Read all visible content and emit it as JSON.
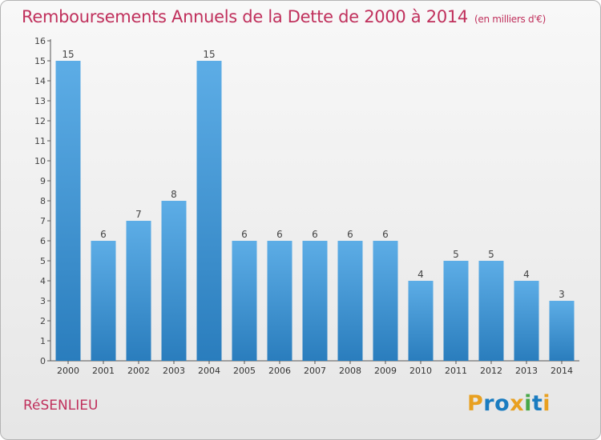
{
  "header": {
    "title": "Remboursements Annuels de la Dette de 2000 à 2014",
    "unit": "(en milliers d'€)"
  },
  "footer": {
    "commune": "RéSENLIEU",
    "brand": "Proxiti"
  },
  "colors": {
    "title": "#c0305c",
    "bar_top": "#5dade6",
    "bar_bottom": "#2a7dbd",
    "logo_letters": [
      "#e8a020",
      "#1a7cc0",
      "#1a7cc0",
      "#e8a020",
      "#48a848",
      "#1a7cc0",
      "#e8a020"
    ]
  },
  "chart_data": {
    "type": "bar",
    "categories": [
      "2000",
      "2001",
      "2002",
      "2003",
      "2004",
      "2005",
      "2006",
      "2007",
      "2008",
      "2009",
      "2010",
      "2011",
      "2012",
      "2013",
      "2014"
    ],
    "values": [
      15,
      6,
      7,
      8,
      15,
      6,
      6,
      6,
      6,
      6,
      4,
      5,
      5,
      4,
      3
    ],
    "ylim": [
      0,
      16
    ],
    "yticks": [
      0,
      1,
      2,
      3,
      4,
      5,
      6,
      7,
      8,
      9,
      10,
      11,
      12,
      13,
      14,
      15,
      16
    ],
    "grid": false,
    "data_labels": true
  }
}
